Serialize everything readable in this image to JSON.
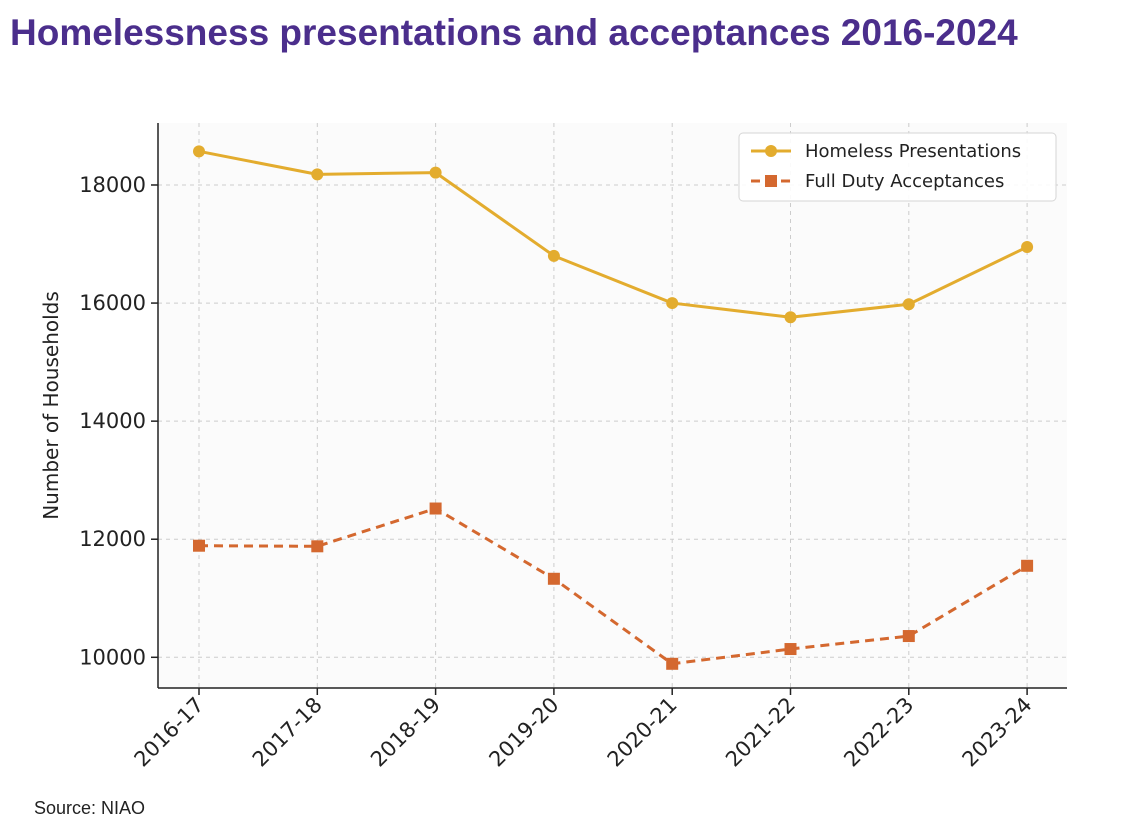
{
  "header": {
    "title": "Homelessness presentations and acceptances 2016-2024"
  },
  "footer": {
    "source": "Source: NIAO"
  },
  "chart_data": {
    "type": "line",
    "title": "Homelessness presentations and acceptances 2016-2024",
    "xlabel": "",
    "ylabel": "Number of Households",
    "categories": [
      "2016-17",
      "2017-18",
      "2018-19",
      "2019-20",
      "2020-21",
      "2021-22",
      "2022-23",
      "2023-24"
    ],
    "ylim": [
      9480,
      19050
    ],
    "yticks": [
      10000,
      12000,
      14000,
      16000,
      18000
    ],
    "grid": true,
    "legend_position": "top-right",
    "series": [
      {
        "name": "Homeless Presentations",
        "values": [
          18570,
          18180,
          18210,
          16800,
          16000,
          15760,
          15980,
          16950
        ],
        "color": "#e3ac2e",
        "marker": "circle",
        "dash": "solid"
      },
      {
        "name": "Full Duty Acceptances",
        "values": [
          11890,
          11880,
          12520,
          11330,
          9890,
          10140,
          10360,
          11550
        ],
        "color": "#d4682f",
        "marker": "square",
        "dash": "dashed"
      }
    ]
  }
}
